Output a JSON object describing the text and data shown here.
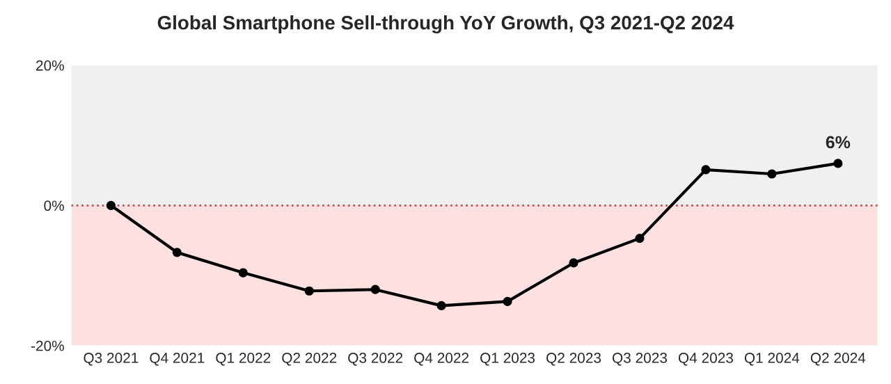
{
  "chart_data": {
    "type": "line",
    "title": "Global Smartphone Sell-through YoY Growth, Q3 2021-Q2 2024",
    "categories": [
      "Q3 2021",
      "Q4 2021",
      "Q1 2022",
      "Q2 2022",
      "Q3 2022",
      "Q4 2022",
      "Q1 2023",
      "Q2 2023",
      "Q3 2023",
      "Q4 2023",
      "Q1 2024",
      "Q2 2024"
    ],
    "series": [
      {
        "color": "#000000",
        "values": [
          0,
          -6.7,
          -9.6,
          -12.2,
          -12,
          -14.3,
          -13.7,
          -8.2,
          -4.7,
          5.1,
          4.5,
          6
        ],
        "value_labels": [
          null,
          null,
          null,
          null,
          null,
          null,
          null,
          null,
          null,
          null,
          null,
          "6%"
        ]
      }
    ],
    "ylim": [
      -20,
      20
    ],
    "yticks": [
      {
        "value": -20,
        "label": "-20%"
      },
      {
        "value": 0,
        "label": "0%"
      },
      {
        "value": 20,
        "label": "20%"
      }
    ],
    "bands": [
      {
        "axis": "y",
        "from": 0,
        "to": 20,
        "color": "#f0f0f0"
      },
      {
        "axis": "y",
        "from": -20,
        "to": 0,
        "color": "#fde0e0"
      }
    ],
    "ref_lines": [
      {
        "axis": "y",
        "value": 0,
        "color": "#c0504d",
        "line_style": "dotted"
      }
    ],
    "marker": "circle",
    "line_style": "solid",
    "grid": false,
    "legend": false
  }
}
